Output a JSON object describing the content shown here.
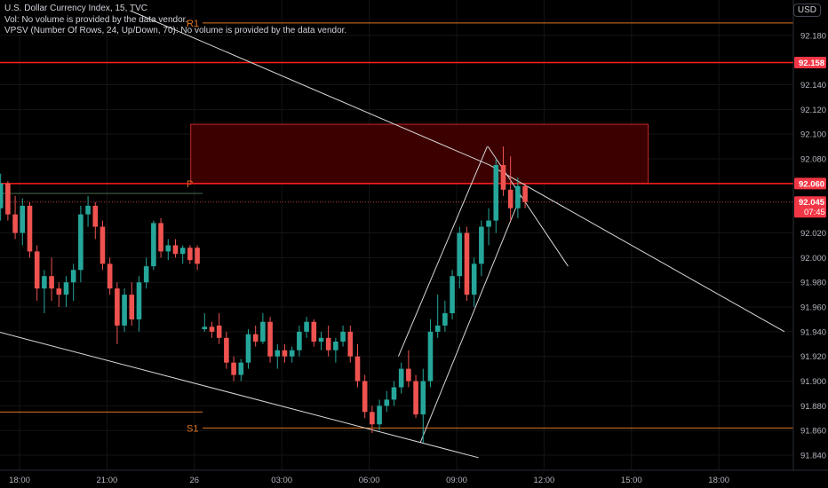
{
  "legend": {
    "title": "U.S. Dollar Currency Index, 15, TVC",
    "vol": "Vol: No volume is provided by the data vendor.",
    "vpsv": "VPSV (Number Of Rows, 24, Up/Down, 70): No volume is provided by the data vendor."
  },
  "currency_button": "USD",
  "colors": {
    "up": "#26a69a",
    "down": "#ef5350",
    "level_red": "#ff1e1e",
    "pivot": "#e0751f",
    "zone_fill": "#3d0000",
    "zone_stroke": "#c62828",
    "trendline": "#d8d8d8"
  },
  "chart_data": {
    "type": "candlestick",
    "ylim": [
      91.835,
      92.2
    ],
    "y_ticks": [
      "92.180",
      "92.140",
      "92.120",
      "92.100",
      "92.080",
      "92.020",
      "92.000",
      "91.980",
      "91.960",
      "91.940",
      "91.920",
      "91.900",
      "91.880",
      "91.860",
      "91.840"
    ],
    "x_ticks": [
      {
        "label": "18:00",
        "t": 0
      },
      {
        "label": "21:00",
        "t": 12
      },
      {
        "label": "26",
        "t": 24
      },
      {
        "label": "03:00",
        "t": 36
      },
      {
        "label": "06:00",
        "t": 48
      },
      {
        "label": "09:00",
        "t": 60
      },
      {
        "label": "12:00",
        "t": 72
      },
      {
        "label": "15:00",
        "t": 84
      },
      {
        "label": "18:00",
        "t": 96
      }
    ],
    "price_labels": [
      {
        "value": "92.158",
        "price": 92.158
      },
      {
        "value": "92.060",
        "price": 92.06
      },
      {
        "value": "92.045",
        "price": 92.045,
        "countdown": "07:45"
      }
    ],
    "levels": [
      {
        "name": "R1",
        "price": 92.19,
        "kind": "pivot"
      },
      {
        "name": "P",
        "price": 92.06,
        "kind": "pivot"
      },
      {
        "name": "S1",
        "price": 91.862,
        "kind": "pivot"
      }
    ],
    "red_lines": [
      92.158,
      92.06
    ],
    "zone": {
      "t_start": 23.5,
      "t_end": 86.3,
      "top": 92.108,
      "bottom": 92.06
    },
    "candles": [
      [
        -2.6,
        92.04,
        92.068,
        92.03,
        92.06
      ],
      [
        -1.6,
        92.06,
        92.062,
        92.03,
        92.035
      ],
      [
        -0.6,
        92.035,
        92.05,
        92.015,
        92.02
      ],
      [
        0.4,
        92.02,
        92.048,
        92.01,
        92.042
      ],
      [
        1.4,
        92.042,
        92.045,
        92.0,
        92.005
      ],
      [
        2.4,
        92.005,
        92.01,
        91.965,
        91.975
      ],
      [
        3.4,
        91.975,
        91.99,
        91.955,
        91.985
      ],
      [
        4.4,
        91.985,
        92.0,
        91.965,
        91.975
      ],
      [
        5.4,
        91.975,
        91.98,
        91.96,
        91.97
      ],
      [
        6.4,
        91.97,
        91.985,
        91.96,
        91.98
      ],
      [
        7.4,
        91.98,
        91.995,
        91.965,
        91.99
      ],
      [
        8.4,
        91.99,
        92.042,
        91.98,
        92.035
      ],
      [
        9.4,
        92.035,
        92.05,
        92.025,
        92.042
      ],
      [
        10.4,
        92.042,
        92.045,
        92.015,
        92.025
      ],
      [
        11.4,
        92.025,
        92.03,
        91.99,
        91.995
      ],
      [
        12.4,
        91.995,
        92.0,
        91.97,
        91.975
      ],
      [
        13.4,
        91.975,
        91.98,
        91.93,
        91.945
      ],
      [
        14.4,
        91.945,
        91.975,
        91.94,
        91.97
      ],
      [
        15.4,
        91.97,
        91.98,
        91.945,
        91.95
      ],
      [
        16.4,
        91.95,
        91.985,
        91.94,
        91.98
      ],
      [
        17.4,
        91.98,
        92.0,
        91.975,
        91.993
      ],
      [
        18.4,
        91.993,
        92.03,
        91.99,
        92.028
      ],
      [
        19.4,
        92.028,
        92.032,
        92.0,
        92.005
      ],
      [
        20.4,
        92.005,
        92.015,
        91.998,
        92.01
      ],
      [
        21.4,
        92.01,
        92.015,
        92.0,
        92.003
      ],
      [
        22.4,
        92.003,
        92.01,
        91.995,
        92.008
      ],
      [
        23.4,
        92.008,
        92.01,
        91.995,
        91.998
      ],
      [
        24.4,
        92.008,
        92.01,
        91.99,
        91.995
      ],
      [
        25.4,
        91.942,
        91.955,
        91.94,
        91.944
      ],
      [
        26.4,
        91.944,
        91.948,
        91.935,
        91.94
      ],
      [
        27.4,
        91.945,
        91.955,
        91.93,
        91.935
      ],
      [
        28.4,
        91.935,
        91.94,
        91.91,
        91.915
      ],
      [
        29.4,
        91.915,
        91.92,
        91.9,
        91.905
      ],
      [
        30.4,
        91.905,
        91.918,
        91.9,
        91.915
      ],
      [
        31.4,
        91.915,
        91.942,
        91.91,
        91.938
      ],
      [
        32.4,
        91.938,
        91.945,
        91.928,
        91.932
      ],
      [
        33.4,
        91.932,
        91.955,
        91.93,
        91.948
      ],
      [
        34.4,
        91.948,
        91.952,
        91.915,
        91.92
      ],
      [
        35.4,
        91.92,
        91.93,
        91.91,
        91.925
      ],
      [
        36.4,
        91.925,
        91.93,
        91.915,
        91.92
      ],
      [
        37.4,
        91.92,
        91.928,
        91.915,
        91.925
      ],
      [
        38.4,
        91.925,
        91.945,
        91.92,
        91.94
      ],
      [
        39.4,
        91.94,
        91.952,
        91.935,
        91.948
      ],
      [
        40.4,
        91.948,
        91.95,
        91.928,
        91.932
      ],
      [
        41.4,
        91.932,
        91.94,
        91.925,
        91.935
      ],
      [
        42.4,
        91.935,
        91.945,
        91.92,
        91.925
      ],
      [
        43.4,
        91.925,
        91.935,
        91.915,
        91.932
      ],
      [
        44.4,
        91.932,
        91.945,
        91.928,
        91.94
      ],
      [
        45.4,
        91.94,
        91.945,
        91.915,
        91.92
      ],
      [
        46.4,
        91.92,
        91.93,
        91.895,
        91.9
      ],
      [
        47.4,
        91.9,
        91.905,
        91.87,
        91.875
      ],
      [
        48.4,
        91.875,
        91.88,
        91.858,
        91.865
      ],
      [
        49.4,
        91.865,
        91.885,
        91.86,
        91.88
      ],
      [
        50.4,
        91.88,
        91.892,
        91.875,
        91.885
      ],
      [
        51.4,
        91.885,
        91.9,
        91.88,
        91.895
      ],
      [
        52.4,
        91.895,
        91.915,
        91.89,
        91.91
      ],
      [
        53.4,
        91.91,
        91.925,
        91.895,
        91.9
      ],
      [
        54.4,
        91.9,
        91.905,
        91.87,
        91.873
      ],
      [
        55.4,
        91.873,
        91.91,
        91.85,
        91.9
      ],
      [
        56.4,
        91.9,
        91.95,
        91.895,
        91.94
      ],
      [
        57.4,
        91.94,
        91.97,
        91.935,
        91.945
      ],
      [
        58.4,
        91.945,
        91.965,
        91.94,
        91.955
      ],
      [
        59.4,
        91.955,
        91.99,
        91.95,
        91.985
      ],
      [
        60.4,
        91.985,
        92.025,
        91.975,
        92.02
      ],
      [
        61.4,
        92.02,
        92.025,
        91.965,
        91.97
      ],
      [
        62.4,
        91.97,
        92.0,
        91.96,
        91.995
      ],
      [
        63.4,
        91.995,
        92.03,
        91.985,
        92.025
      ],
      [
        64.4,
        92.025,
        92.04,
        92.01,
        92.03
      ],
      [
        65.4,
        92.03,
        92.08,
        92.02,
        92.075
      ],
      [
        66.4,
        92.075,
        92.09,
        92.05,
        92.055
      ],
      [
        67.4,
        92.055,
        92.082,
        92.03,
        92.04
      ],
      [
        68.4,
        92.04,
        92.065,
        92.032,
        92.058
      ],
      [
        69.4,
        92.058,
        92.06,
        92.04,
        92.045
      ]
    ]
  }
}
